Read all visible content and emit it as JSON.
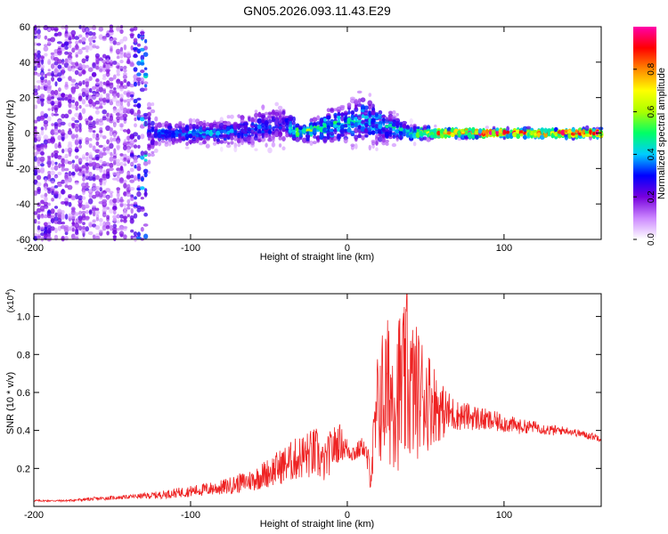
{
  "figure_title": "GN05.2026.093.11.43.E29",
  "chart_data": [
    {
      "type": "heatmap",
      "title": "GN05.2026.093.11.43.E29",
      "xlabel": "Height of straight line (km)",
      "ylabel": "Frequency (Hz)",
      "xlim": [
        -200,
        162
      ],
      "ylim": [
        -60,
        60
      ],
      "xticks": [
        -200,
        -100,
        0,
        100
      ],
      "xtick_labels": [
        "-200",
        "-100",
        "0",
        "100"
      ],
      "yticks": [
        -60,
        -40,
        -20,
        0,
        20,
        40,
        60
      ],
      "ytick_labels": [
        "-60",
        "-40",
        "-20",
        "0",
        "20",
        "40",
        "60"
      ],
      "colorbar": {
        "label": "Normalized spectral amplitude",
        "range": [
          0,
          1
        ],
        "ticks": [
          0,
          0.2,
          0.4,
          0.6,
          0.8
        ],
        "tick_labels": [
          "0.0",
          "0.2",
          "0.4",
          "0.6",
          "0.8"
        ],
        "colors": [
          "#ffffff",
          "#cc88ff",
          "#7700dd",
          "#0000ff",
          "#00ccff",
          "#00ff66",
          "#aaff00",
          "#ffff00",
          "#ff8800",
          "#ff0000",
          "#ff00aa"
        ]
      },
      "description_points": [
        {
          "x": -200,
          "f_center": 0,
          "f_spread": 60,
          "amp": 0.15
        },
        {
          "x": -140,
          "f_center": 0,
          "f_spread": 60,
          "amp": 0.12
        },
        {
          "x": -120,
          "f_center": 0,
          "f_spread": 8,
          "amp": 0.35
        },
        {
          "x": -80,
          "f_center": 0,
          "f_spread": 8,
          "amp": 0.4
        },
        {
          "x": -40,
          "f_center": 5,
          "f_spread": 15,
          "amp": 0.3
        },
        {
          "x": -30,
          "f_center": 0,
          "f_spread": 5,
          "amp": 0.6
        },
        {
          "x": 10,
          "f_center": 8,
          "f_spread": 18,
          "amp": 0.4
        },
        {
          "x": 40,
          "f_center": 0,
          "f_spread": 6,
          "amp": 0.45
        },
        {
          "x": 60,
          "f_center": 0,
          "f_spread": 3,
          "amp": 0.9
        },
        {
          "x": 100,
          "f_center": 0,
          "f_spread": 3,
          "amp": 0.95
        },
        {
          "x": 162,
          "f_center": 0,
          "f_spread": 3,
          "amp": 0.9
        }
      ]
    },
    {
      "type": "line",
      "xlabel": "Height of straight line (km)",
      "ylabel": "SNR (10 * v/v)",
      "y_multiplier": "(x10",
      "y_multiplier_exp": "4",
      "y_multiplier_close": ")",
      "xlim": [
        -200,
        162
      ],
      "ylim": [
        0,
        1.12
      ],
      "xticks": [
        -200,
        -100,
        0,
        100
      ],
      "xtick_labels": [
        "-200",
        "-100",
        "0",
        "100"
      ],
      "yticks": [
        0.2,
        0.4,
        0.6,
        0.8,
        1.0
      ],
      "ytick_labels": [
        "0.2",
        "0.4",
        "0.6",
        "0.8",
        "1.0"
      ],
      "series": [
        {
          "color": "#ee2222",
          "x": [
            -200,
            -180,
            -160,
            -140,
            -120,
            -100,
            -80,
            -60,
            -50,
            -40,
            -30,
            -20,
            -15,
            -10,
            -5,
            0,
            5,
            10,
            15,
            20,
            25,
            30,
            35,
            40,
            45,
            50,
            55,
            60,
            70,
            80,
            90,
            100,
            110,
            120,
            130,
            140,
            150,
            162
          ],
          "y": [
            0.03,
            0.03,
            0.04,
            0.05,
            0.06,
            0.08,
            0.1,
            0.14,
            0.18,
            0.22,
            0.26,
            0.28,
            0.22,
            0.3,
            0.34,
            0.3,
            0.28,
            0.32,
            0.18,
            0.55,
            0.6,
            0.6,
            0.62,
            0.62,
            0.6,
            0.58,
            0.55,
            0.5,
            0.48,
            0.47,
            0.45,
            0.44,
            0.42,
            0.42,
            0.4,
            0.4,
            0.38,
            0.36
          ],
          "noise": [
            0.005,
            0.005,
            0.01,
            0.01,
            0.02,
            0.03,
            0.04,
            0.06,
            0.08,
            0.1,
            0.12,
            0.14,
            0.1,
            0.12,
            0.1,
            0.06,
            0.05,
            0.05,
            0.1,
            0.35,
            0.4,
            0.4,
            0.45,
            0.4,
            0.35,
            0.3,
            0.22,
            0.15,
            0.08,
            0.07,
            0.06,
            0.05,
            0.04,
            0.03,
            0.03,
            0.02,
            0.02,
            0.02
          ],
          "peak": {
            "x": 38,
            "y": 1.12
          }
        }
      ]
    }
  ]
}
